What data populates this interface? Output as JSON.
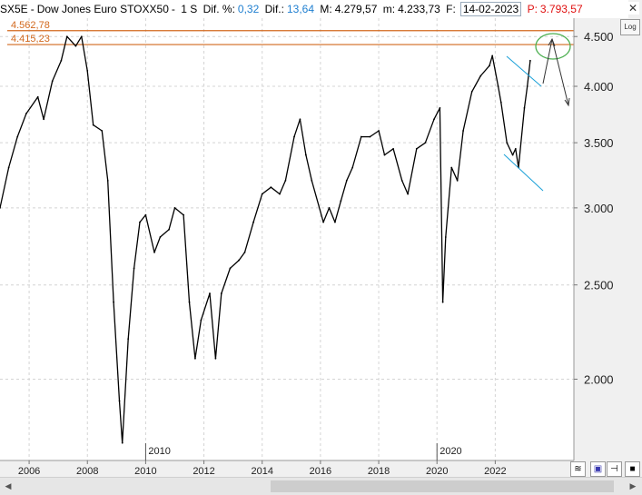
{
  "header": {
    "symbol": "SX5E",
    "sep1": "-",
    "name": "Dow Jones Euro STOXX50",
    "sep2": "-",
    "period": "1 S",
    "difpct_label": "Dif. %:",
    "difpct_value": "0,32",
    "dif_label": "Dif.:",
    "dif_value": "13,64",
    "max_label": "M:",
    "max_value": "4.279,57",
    "min_label": "m:",
    "min_value": "4.233,73",
    "date_label": "F:",
    "date_value": "14-02-2023",
    "price_label": "P:",
    "price_value": "3.793,57",
    "close_symbol": "✕"
  },
  "log_button": "Log",
  "levels": [
    {
      "label": "4.562,78",
      "value": 4562.78,
      "color": "#d2691e"
    },
    {
      "label": "4.415,23",
      "value": 4415.23,
      "color": "#d2691e"
    }
  ],
  "annotation_colors": {
    "channel": "#1aa0d8",
    "circle": "#4caf50",
    "arrow": "#333333"
  },
  "chart_data": {
    "type": "line",
    "title": "",
    "xlabel": "",
    "ylabel": "",
    "yscale": "log",
    "ylim": [
      1650,
      4700
    ],
    "xlim": [
      2005.0,
      2024.7
    ],
    "grid": true,
    "y_ticks": [
      {
        "value": 2000,
        "label": "2.000"
      },
      {
        "value": 2500,
        "label": "2.500"
      },
      {
        "value": 3000,
        "label": "3.000"
      },
      {
        "value": 3500,
        "label": "3.500"
      },
      {
        "value": 4000,
        "label": "4.000"
      },
      {
        "value": 4500,
        "label": "4.500"
      }
    ],
    "x_ticks": [
      {
        "value": 2006,
        "label": "2006"
      },
      {
        "value": 2008,
        "label": "2008"
      },
      {
        "value": 2010,
        "label": "2010"
      },
      {
        "value": 2012,
        "label": "2012"
      },
      {
        "value": 2014,
        "label": "2014"
      },
      {
        "value": 2016,
        "label": "2016"
      },
      {
        "value": 2018,
        "label": "2018"
      },
      {
        "value": 2020,
        "label": "2020"
      },
      {
        "value": 2022,
        "label": "2022"
      }
    ],
    "x_markers": [
      {
        "value": 2010,
        "label": "2010"
      },
      {
        "value": 2020,
        "label": "2020"
      }
    ],
    "series": [
      {
        "name": "SX5E",
        "color": "#000000",
        "x": [
          2005.0,
          2005.3,
          2005.6,
          2005.9,
          2006.3,
          2006.5,
          2006.8,
          2007.1,
          2007.3,
          2007.6,
          2007.8,
          2008.0,
          2008.2,
          2008.5,
          2008.7,
          2008.9,
          2009.1,
          2009.2,
          2009.4,
          2009.6,
          2009.8,
          2010.0,
          2010.3,
          2010.5,
          2010.8,
          2011.0,
          2011.3,
          2011.5,
          2011.7,
          2011.9,
          2012.2,
          2012.4,
          2012.6,
          2012.9,
          2013.2,
          2013.4,
          2013.7,
          2014.0,
          2014.3,
          2014.6,
          2014.8,
          2015.1,
          2015.3,
          2015.5,
          2015.7,
          2016.1,
          2016.3,
          2016.5,
          2016.7,
          2016.9,
          2017.1,
          2017.4,
          2017.7,
          2018.0,
          2018.2,
          2018.5,
          2018.8,
          2019.0,
          2019.3,
          2019.6,
          2019.9,
          2020.1,
          2020.2,
          2020.3,
          2020.5,
          2020.7,
          2020.9,
          2021.2,
          2021.5,
          2021.8,
          2021.9,
          2022.1,
          2022.2,
          2022.4,
          2022.6,
          2022.7,
          2022.8,
          2023.0,
          2023.1,
          2023.2
        ],
        "values": [
          3000,
          3300,
          3550,
          3750,
          3900,
          3700,
          4050,
          4250,
          4500,
          4400,
          4500,
          4150,
          3650,
          3600,
          3200,
          2400,
          1900,
          1720,
          2200,
          2600,
          2900,
          2950,
          2700,
          2800,
          2850,
          3000,
          2950,
          2400,
          2100,
          2300,
          2450,
          2100,
          2450,
          2600,
          2650,
          2700,
          2900,
          3100,
          3150,
          3100,
          3200,
          3550,
          3700,
          3400,
          3200,
          2900,
          3000,
          2900,
          3050,
          3200,
          3300,
          3550,
          3550,
          3600,
          3400,
          3450,
          3200,
          3100,
          3450,
          3500,
          3700,
          3800,
          2400,
          2800,
          3300,
          3200,
          3600,
          3950,
          4100,
          4200,
          4300,
          4000,
          3850,
          3500,
          3400,
          3450,
          3300,
          3800,
          4000,
          4250
        ]
      }
    ]
  }
}
